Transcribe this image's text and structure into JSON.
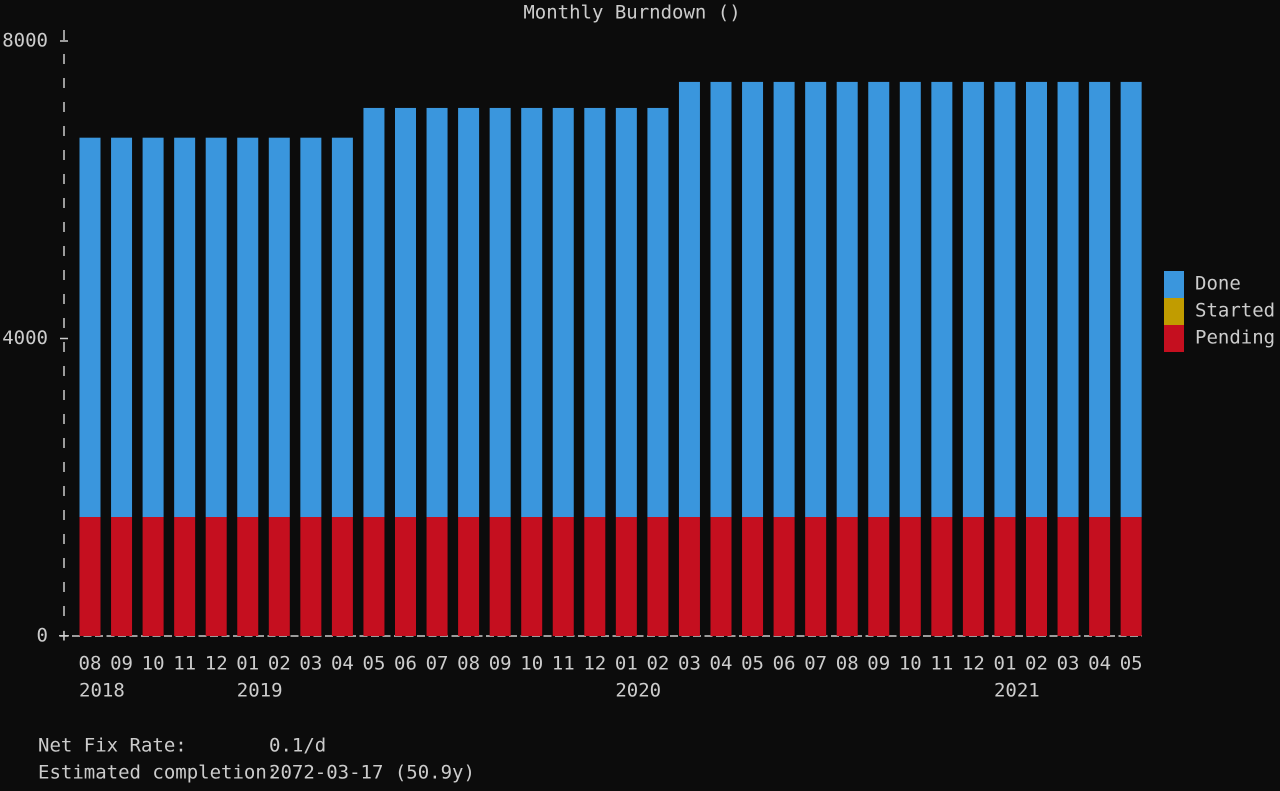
{
  "chart_data": {
    "type": "stacked_bar",
    "title": "Monthly Burndown ()",
    "categories": [
      "08",
      "09",
      "10",
      "11",
      "12",
      "01",
      "02",
      "03",
      "04",
      "05",
      "06",
      "07",
      "08",
      "09",
      "10",
      "11",
      "12",
      "01",
      "02",
      "03",
      "04",
      "05",
      "06",
      "07",
      "08",
      "09",
      "10",
      "11",
      "12",
      "01",
      "02",
      "03",
      "04",
      "05"
    ],
    "year_labels": [
      "2018",
      null,
      null,
      null,
      null,
      "2019",
      null,
      null,
      null,
      null,
      null,
      null,
      null,
      null,
      null,
      null,
      null,
      "2020",
      null,
      null,
      null,
      null,
      null,
      null,
      null,
      null,
      null,
      null,
      null,
      "2021",
      null,
      null,
      null,
      null
    ],
    "series": [
      {
        "name": "Done",
        "color": "#3a96dd",
        "values": [
          5100,
          5100,
          5100,
          5100,
          5100,
          5100,
          5100,
          5100,
          5100,
          5500,
          5500,
          5500,
          5500,
          5500,
          5500,
          5500,
          5500,
          5500,
          5500,
          5850,
          5850,
          5850,
          5850,
          5850,
          5850,
          5850,
          5850,
          5850,
          5850,
          5850,
          5850,
          5850,
          5850,
          5850
        ]
      },
      {
        "name": "Started",
        "color": "#c19c00",
        "values": [
          0,
          0,
          0,
          0,
          0,
          0,
          0,
          0,
          0,
          0,
          0,
          0,
          0,
          0,
          0,
          0,
          0,
          0,
          0,
          0,
          0,
          0,
          0,
          0,
          0,
          0,
          0,
          0,
          0,
          0,
          0,
          0,
          0,
          0
        ]
      },
      {
        "name": "Pending",
        "color": "#c50f1f",
        "values": [
          1600,
          1600,
          1600,
          1600,
          1600,
          1600,
          1600,
          1600,
          1600,
          1600,
          1600,
          1600,
          1600,
          1600,
          1600,
          1600,
          1600,
          1600,
          1600,
          1600,
          1600,
          1600,
          1600,
          1600,
          1600,
          1600,
          1600,
          1600,
          1600,
          1600,
          1600,
          1600,
          1600,
          1600
        ]
      }
    ],
    "ylim": [
      0,
      8000
    ],
    "yticks": [
      0,
      4000,
      8000
    ],
    "legend": "right"
  },
  "footer": {
    "rows": [
      [
        "Net Fix Rate:",
        "0.1/d"
      ],
      [
        "Estimated completion:",
        "2072-03-17 (50.9y)"
      ]
    ]
  }
}
